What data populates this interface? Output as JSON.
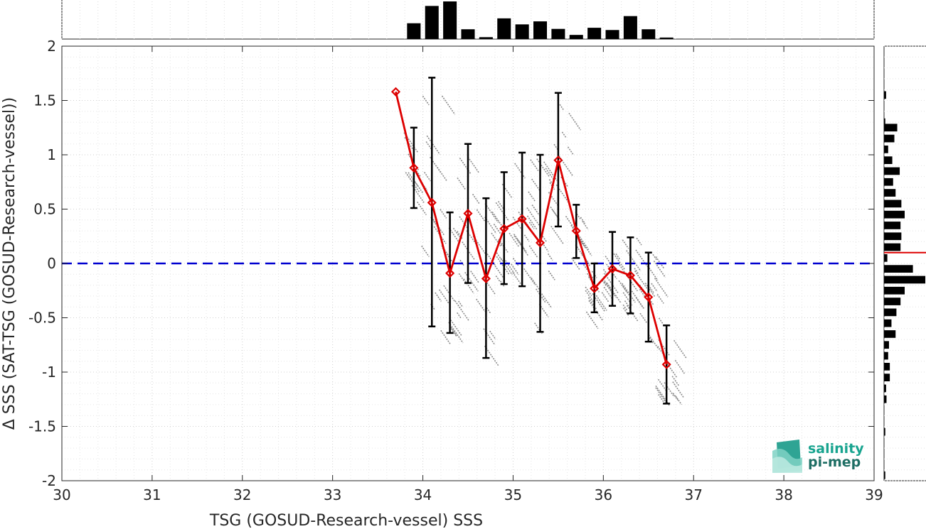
{
  "chart_data": {
    "type": "scatter",
    "xlabel": "TSG (GOSUD-Research-vessel) SSS",
    "ylabel": "Δ SSS (SAT-TSG (GOSUD-Research-vessel))",
    "xlim": [
      30,
      39
    ],
    "ylim": [
      -2,
      2
    ],
    "xticks": [
      30,
      31,
      32,
      33,
      34,
      35,
      36,
      37,
      38,
      39
    ],
    "yticks": [
      -2,
      -1.5,
      -1,
      -0.5,
      0,
      0.5,
      1,
      1.5,
      2
    ],
    "grid": true,
    "zero_line": {
      "y": 0,
      "color": "#0000d0",
      "style": "dashed"
    },
    "binned_mean": {
      "color": "#dd0000",
      "x": [
        33.7,
        33.9,
        34.1,
        34.3,
        34.5,
        34.7,
        34.9,
        35.1,
        35.3,
        35.5,
        35.7,
        35.9,
        36.1,
        36.3,
        36.5,
        36.7
      ],
      "y": [
        1.58,
        0.88,
        0.56,
        -0.09,
        0.46,
        -0.14,
        0.32,
        0.41,
        0.19,
        0.95,
        0.3,
        -0.23,
        -0.05,
        -0.11,
        -0.31,
        -0.93
      ],
      "err_low": [
        null,
        0.51,
        -0.58,
        -0.64,
        -0.18,
        -0.87,
        -0.19,
        -0.21,
        -0.63,
        0.34,
        0.05,
        -0.45,
        -0.39,
        -0.46,
        -0.72,
        -1.29
      ],
      "err_high": [
        null,
        1.25,
        1.71,
        0.47,
        1.1,
        0.6,
        0.84,
        1.02,
        1.0,
        1.57,
        0.54,
        0.0,
        0.29,
        0.24,
        0.1,
        -0.57
      ]
    },
    "x_histogram": {
      "bin_centers": [
        33.9,
        34.1,
        34.3,
        34.5,
        34.7,
        34.9,
        35.1,
        35.3,
        35.5,
        35.7,
        35.9,
        36.1,
        36.3,
        36.5,
        36.7
      ],
      "counts": [
        0.42,
        0.88,
        1.0,
        0.26,
        0.05,
        0.55,
        0.39,
        0.47,
        0.27,
        0.11,
        0.3,
        0.24,
        0.61,
        0.26,
        0.04
      ]
    },
    "y_histogram": {
      "bin_centers": [
        1.55,
        1.3,
        1.25,
        1.15,
        1.05,
        0.95,
        0.85,
        0.75,
        0.65,
        0.55,
        0.45,
        0.35,
        0.25,
        0.15,
        0.05,
        -0.05,
        -0.15,
        -0.25,
        -0.35,
        -0.45,
        -0.55,
        -0.65,
        -0.75,
        -0.85,
        -0.95,
        -1.05,
        -1.15,
        -1.25,
        -1.55,
        -1.95
      ],
      "counts": [
        0.05,
        0.03,
        0.32,
        0.25,
        0.1,
        0.2,
        0.38,
        0.22,
        0.28,
        0.42,
        0.5,
        0.4,
        0.42,
        0.4,
        0.08,
        0.7,
        1.0,
        0.5,
        0.4,
        0.3,
        0.18,
        0.28,
        0.12,
        0.1,
        0.14,
        0.14,
        0.05,
        0.06,
        0.03,
        0.03
      ],
      "mean_marker": {
        "y": 0.1,
        "color": "#dd0000"
      }
    }
  },
  "logo": {
    "line1": "salinity",
    "line2": "pi-mep"
  }
}
